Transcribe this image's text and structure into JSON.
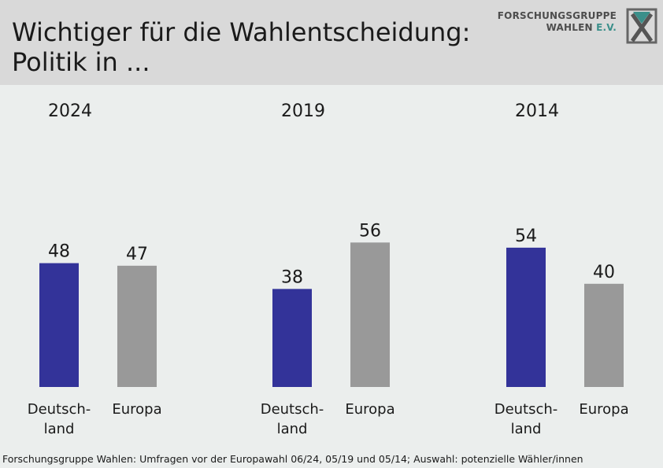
{
  "title_lines": [
    "Wichtiger für die Wahlentscheidung:",
    "Politik in ..."
  ],
  "logo": {
    "line1": "FORSCHUNGSGRUPPE",
    "line2_main": "WAHLEN",
    "line2_suffix": "E.V."
  },
  "source": "Forschungsgruppe Wahlen: Umfragen vor der Europawahl 06/24, 05/19 und 05/14; Auswahl: potenzielle Wähler/innen",
  "colors": {
    "deutschland": "#333399",
    "europa": "#999999",
    "header_bg": "#d9d9d9",
    "plot_bg": "#ebeeed"
  },
  "chart_data": {
    "type": "bar",
    "title": "Wichtiger für die Wahlentscheidung: Politik in ...",
    "ylim": [
      0,
      100
    ],
    "grid": false,
    "groups": [
      {
        "year": "2024",
        "bars": [
          {
            "category": [
              "Deutsch-",
              "land"
            ],
            "value": 48,
            "color": "deutschland"
          },
          {
            "category": [
              "Europa"
            ],
            "value": 47,
            "color": "europa"
          }
        ]
      },
      {
        "year": "2019",
        "bars": [
          {
            "category": [
              "Deutsch-",
              "land"
            ],
            "value": 38,
            "color": "deutschland"
          },
          {
            "category": [
              "Europa"
            ],
            "value": 56,
            "color": "europa"
          }
        ]
      },
      {
        "year": "2014",
        "bars": [
          {
            "category": [
              "Deutsch-",
              "land"
            ],
            "value": 54,
            "color": "deutschland"
          },
          {
            "category": [
              "Europa"
            ],
            "value": 40,
            "color": "europa"
          }
        ]
      }
    ]
  }
}
